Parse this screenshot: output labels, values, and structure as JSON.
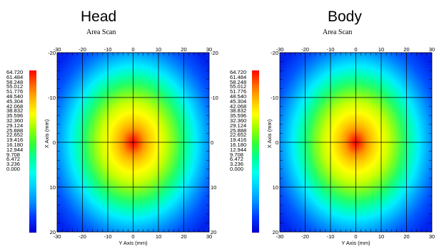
{
  "chart_data": [
    {
      "type": "heatmap",
      "title": "Head",
      "subtitle": "Area Scan",
      "xlabel": "Y Axis (mm)",
      "ylabel": "X Axis (mm)",
      "x_ticks": [
        "-30",
        "-20",
        "-10",
        "0",
        "10",
        "20",
        "30"
      ],
      "y_ticks": [
        "-20",
        "-10",
        "0",
        "10",
        "20"
      ],
      "xlim": [
        -30,
        30
      ],
      "ylim": [
        -20,
        20
      ],
      "peak": {
        "x": 0,
        "y": 0
      },
      "color_scale": [
        "64.720",
        "61.484",
        "58.248",
        "55.012",
        "51.776",
        "48.540",
        "45.304",
        "42.068",
        "38.832",
        "35.596",
        "32.360",
        "29.124",
        "25.888",
        "22.652",
        "19.416",
        "16.180",
        "12.944",
        "9.708",
        "6.472",
        "3.236",
        "0.000"
      ],
      "scale_max": 64.72,
      "scale_min": 0.0,
      "grid": true
    },
    {
      "type": "heatmap",
      "title": "Body",
      "subtitle": "Area Scan",
      "xlabel": "Y Axis (mm)",
      "ylabel": "X Axis (mm)",
      "x_ticks": [
        "-30",
        "-20",
        "-10",
        "0",
        "10",
        "20",
        "30"
      ],
      "y_ticks": [
        "-20",
        "-10",
        "0",
        "10",
        "20"
      ],
      "xlim": [
        -30,
        30
      ],
      "ylim": [
        -20,
        20
      ],
      "peak": {
        "x": 0,
        "y": 0
      },
      "color_scale": [
        "64.720",
        "61.484",
        "58.248",
        "55.012",
        "51.776",
        "48.540",
        "45.304",
        "42.068",
        "38.832",
        "35.596",
        "32.360",
        "29.124",
        "25.888",
        "22.652",
        "19.416",
        "16.180",
        "12.944",
        "9.708",
        "6.472",
        "3.236",
        "0.000"
      ],
      "scale_max": 64.72,
      "scale_min": 0.0,
      "grid": true
    }
  ],
  "colors": {
    "hot": "#ff0000",
    "cold": "#0000cc",
    "grid": "#000000"
  }
}
